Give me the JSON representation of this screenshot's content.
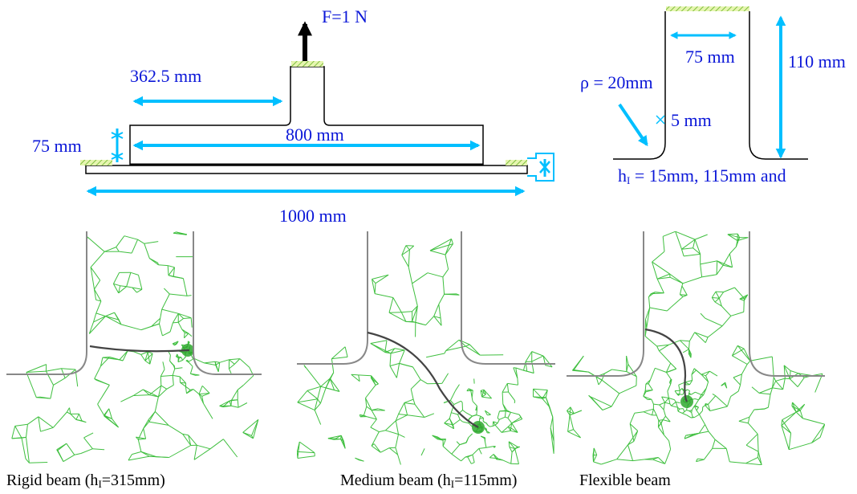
{
  "force_label": "F=1 N",
  "dim_362": "362.5 mm",
  "dim_75_left": "75 mm",
  "dim_800": "800 mm",
  "dim_1000": "1000 mm",
  "dim_75_right": "75 mm",
  "dim_110": "110 mm",
  "dim_5": "5 mm",
  "rho_label": "ρ = 20mm",
  "hI_label": {
    "prefix": "h",
    "sub": "I",
    "rest": " = 15mm, 115mm and"
  },
  "captions": [
    {
      "prefix": "Rigid beam (h",
      "sub": "I",
      "rest": "=315mm)"
    },
    {
      "prefix": "Medium beam (h",
      "sub": "I",
      "rest": "=115mm)"
    },
    {
      "prefix": "Flexible beam",
      "sub": "",
      "rest": ""
    }
  ],
  "colors": {
    "dimension": "#00bfff",
    "text": "#0b17d8",
    "mesh": "#3fbf3f",
    "support": "#8fd14f"
  }
}
